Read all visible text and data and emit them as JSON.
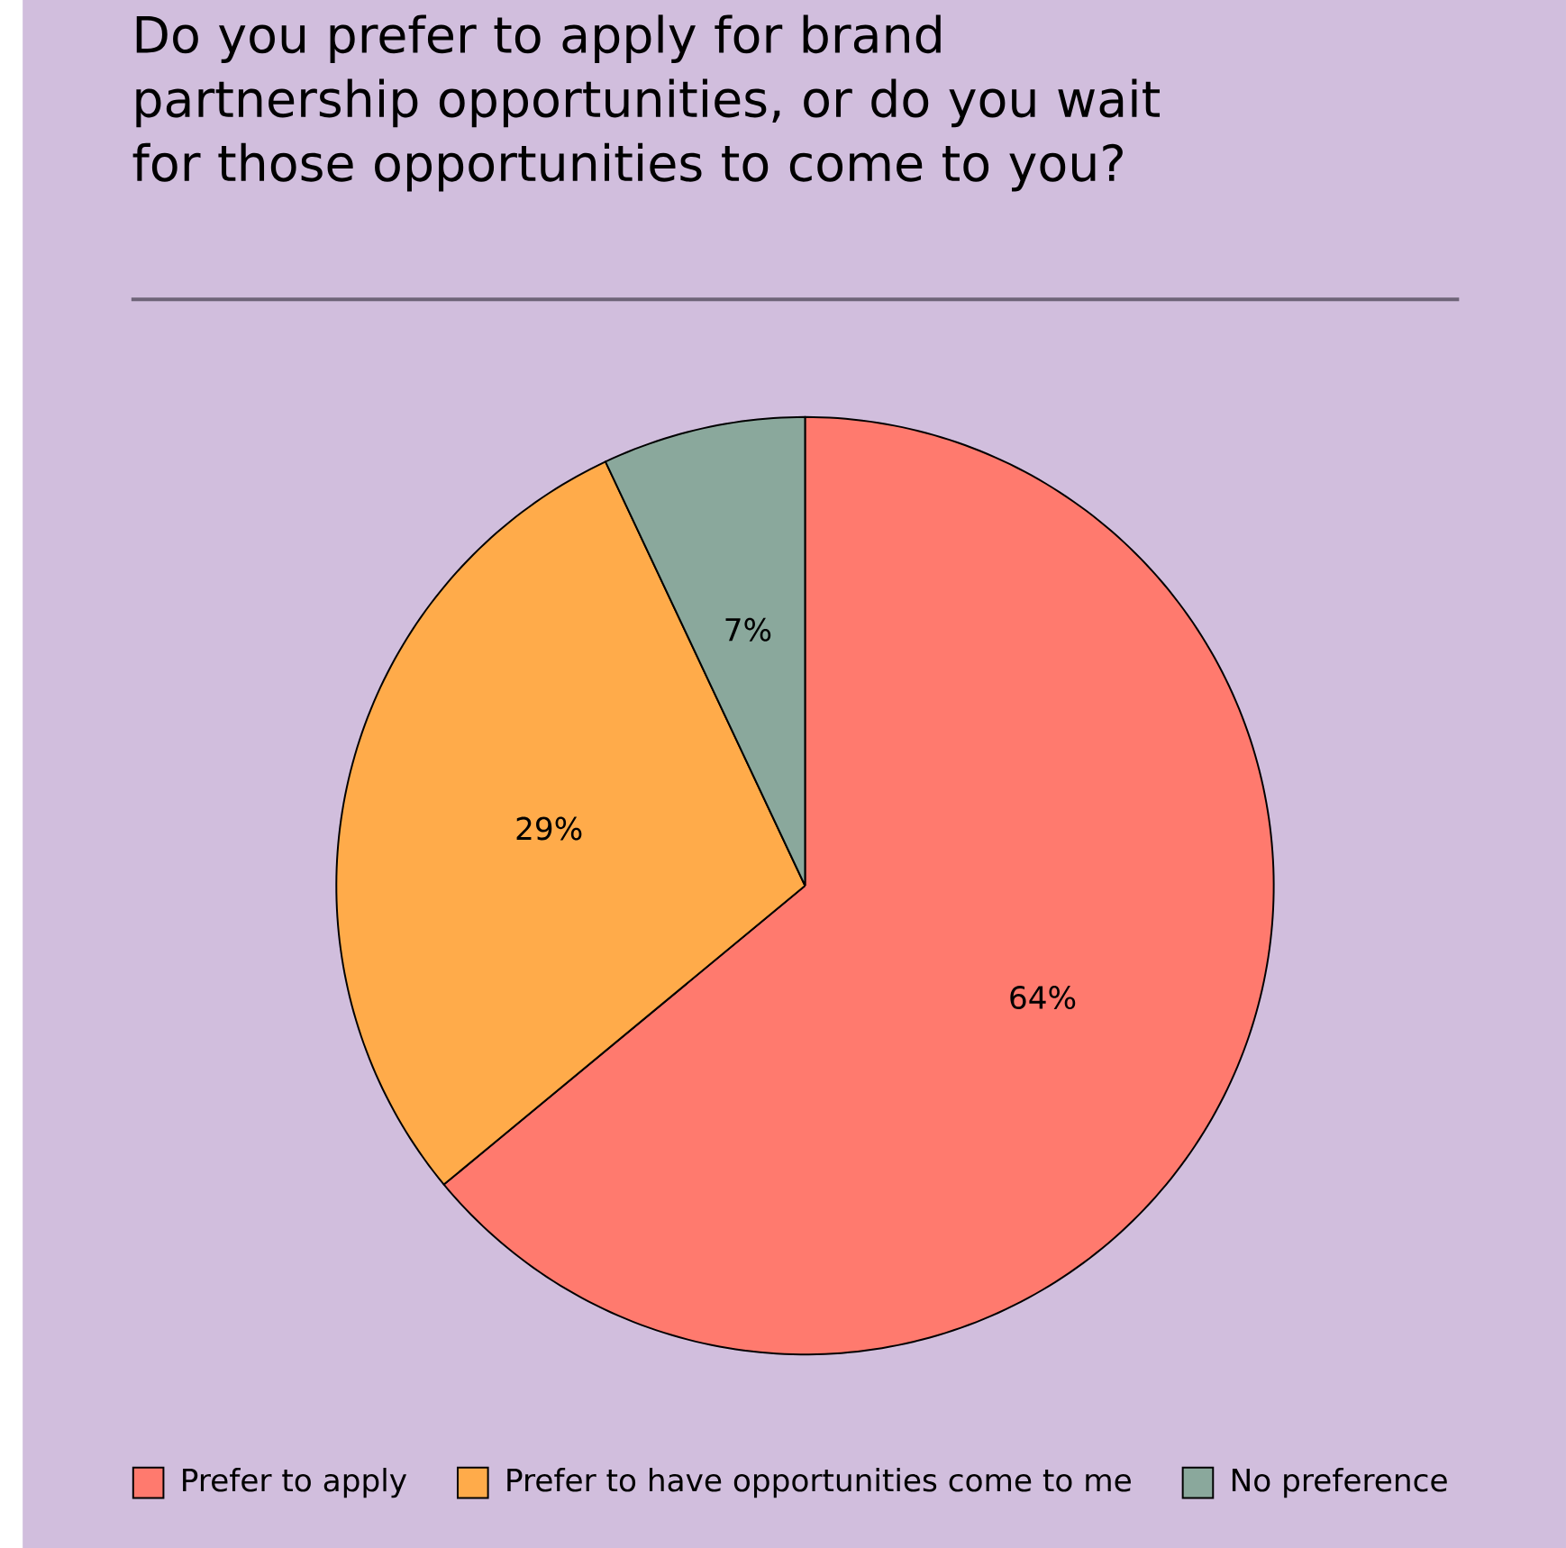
{
  "chart_data": {
    "type": "pie",
    "title": "Do you prefer to apply for brand partnership opportunities, or do you wait for those opportunities to come to you?",
    "categories": [
      "Prefer to apply",
      "Prefer to have opportunities come to me",
      "No preference"
    ],
    "values": [
      64,
      29,
      7
    ],
    "colors": [
      "#ff7a6e",
      "#ffab4a",
      "#8aa89c"
    ],
    "value_labels": [
      "64%",
      "29%",
      "7%"
    ],
    "legend": "bottom"
  }
}
